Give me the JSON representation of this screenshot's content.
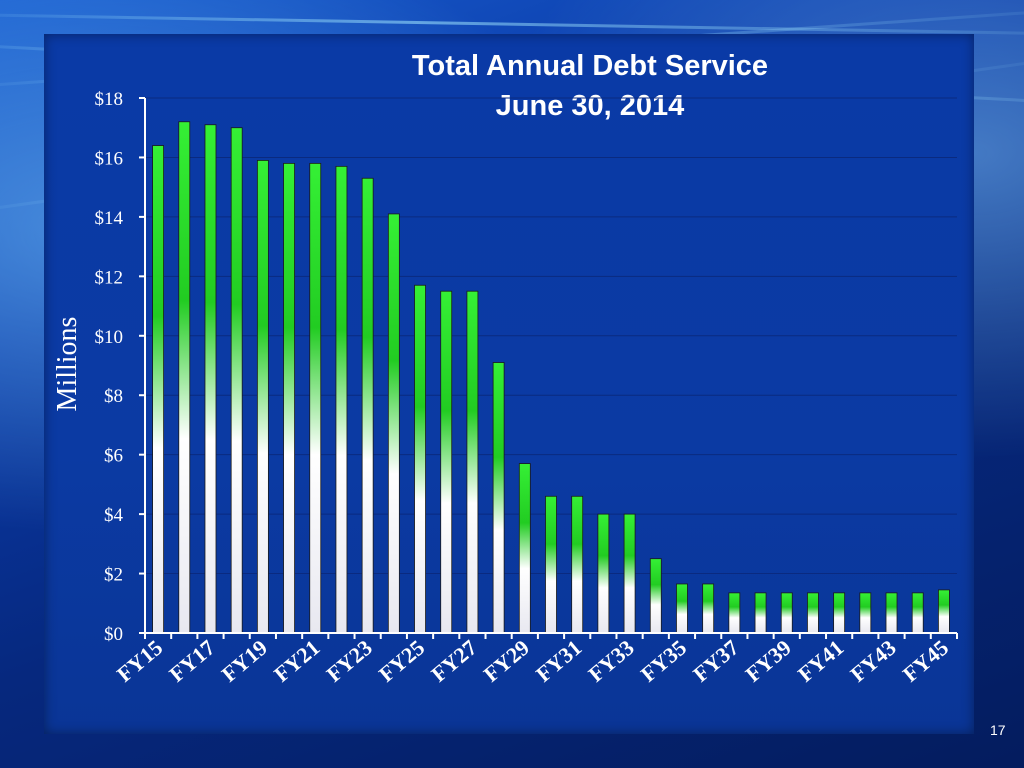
{
  "page_number": "17",
  "chart_data": {
    "type": "bar",
    "title": "Total Annual Debt Service",
    "subtitle": "June 30, 2014",
    "ylabel": "Millions",
    "xlabel": "",
    "ylim": [
      0,
      18
    ],
    "yticks": [
      "$0",
      "$2",
      "$4",
      "$6",
      "$8",
      "$10",
      "$12",
      "$14",
      "$16",
      "$18"
    ],
    "categories": [
      "FY15",
      "FY16",
      "FY17",
      "FY18",
      "FY19",
      "FY20",
      "FY21",
      "FY22",
      "FY23",
      "FY24",
      "FY25",
      "FY26",
      "FY27",
      "FY28",
      "FY29",
      "FY30",
      "FY31",
      "FY32",
      "FY33",
      "FY34",
      "FY35",
      "FY36",
      "FY37",
      "FY38",
      "FY39",
      "FY40",
      "FY41",
      "FY42",
      "FY43",
      "FY44",
      "FY45"
    ],
    "x_tick_labels": [
      "FY15",
      "FY17",
      "FY19",
      "FY21",
      "FY23",
      "FY25",
      "FY27",
      "FY29",
      "FY31",
      "FY33",
      "FY35",
      "FY37",
      "FY39",
      "FY41",
      "FY43",
      "FY45"
    ],
    "values": [
      16.4,
      17.2,
      17.1,
      17.0,
      15.9,
      15.8,
      15.8,
      15.7,
      15.3,
      14.1,
      11.7,
      11.5,
      11.5,
      9.1,
      5.7,
      4.6,
      4.6,
      4.0,
      4.0,
      2.5,
      1.65,
      1.65,
      1.35,
      1.35,
      1.35,
      1.35,
      1.35,
      1.35,
      1.35,
      1.35,
      1.45
    ],
    "grid": true,
    "legend": "none",
    "colors": {
      "bar_top": "#2ee82e",
      "bar_bottom": "#ffffff",
      "text": "#ffffff"
    }
  }
}
